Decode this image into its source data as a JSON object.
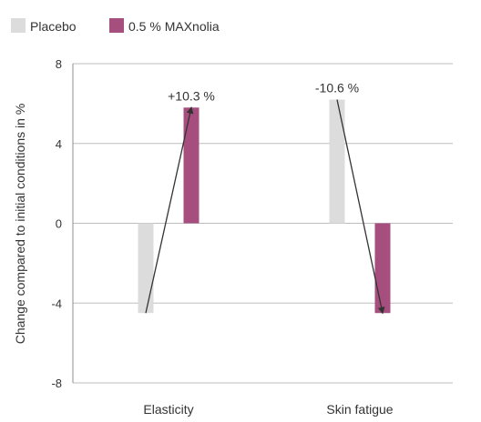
{
  "chart_data": {
    "type": "bar",
    "categories": [
      "Elasticity",
      "Skin fatigue"
    ],
    "series": [
      {
        "name": "Placebo",
        "values": [
          -4.5,
          6.2
        ],
        "color": "#dcdcdc"
      },
      {
        "name": "0.5 % MAXnolia",
        "values": [
          5.8,
          -4.5
        ],
        "color": "#a64f7e"
      }
    ],
    "ylabel": "Change compared to initial conditions in %",
    "ylim": [
      -8,
      8
    ],
    "yticks": [
      8,
      4,
      0,
      -4,
      -8
    ],
    "grid": true,
    "legend_position": "top-left",
    "annotations": [
      "+10.3 %",
      "-10.6 %"
    ]
  }
}
